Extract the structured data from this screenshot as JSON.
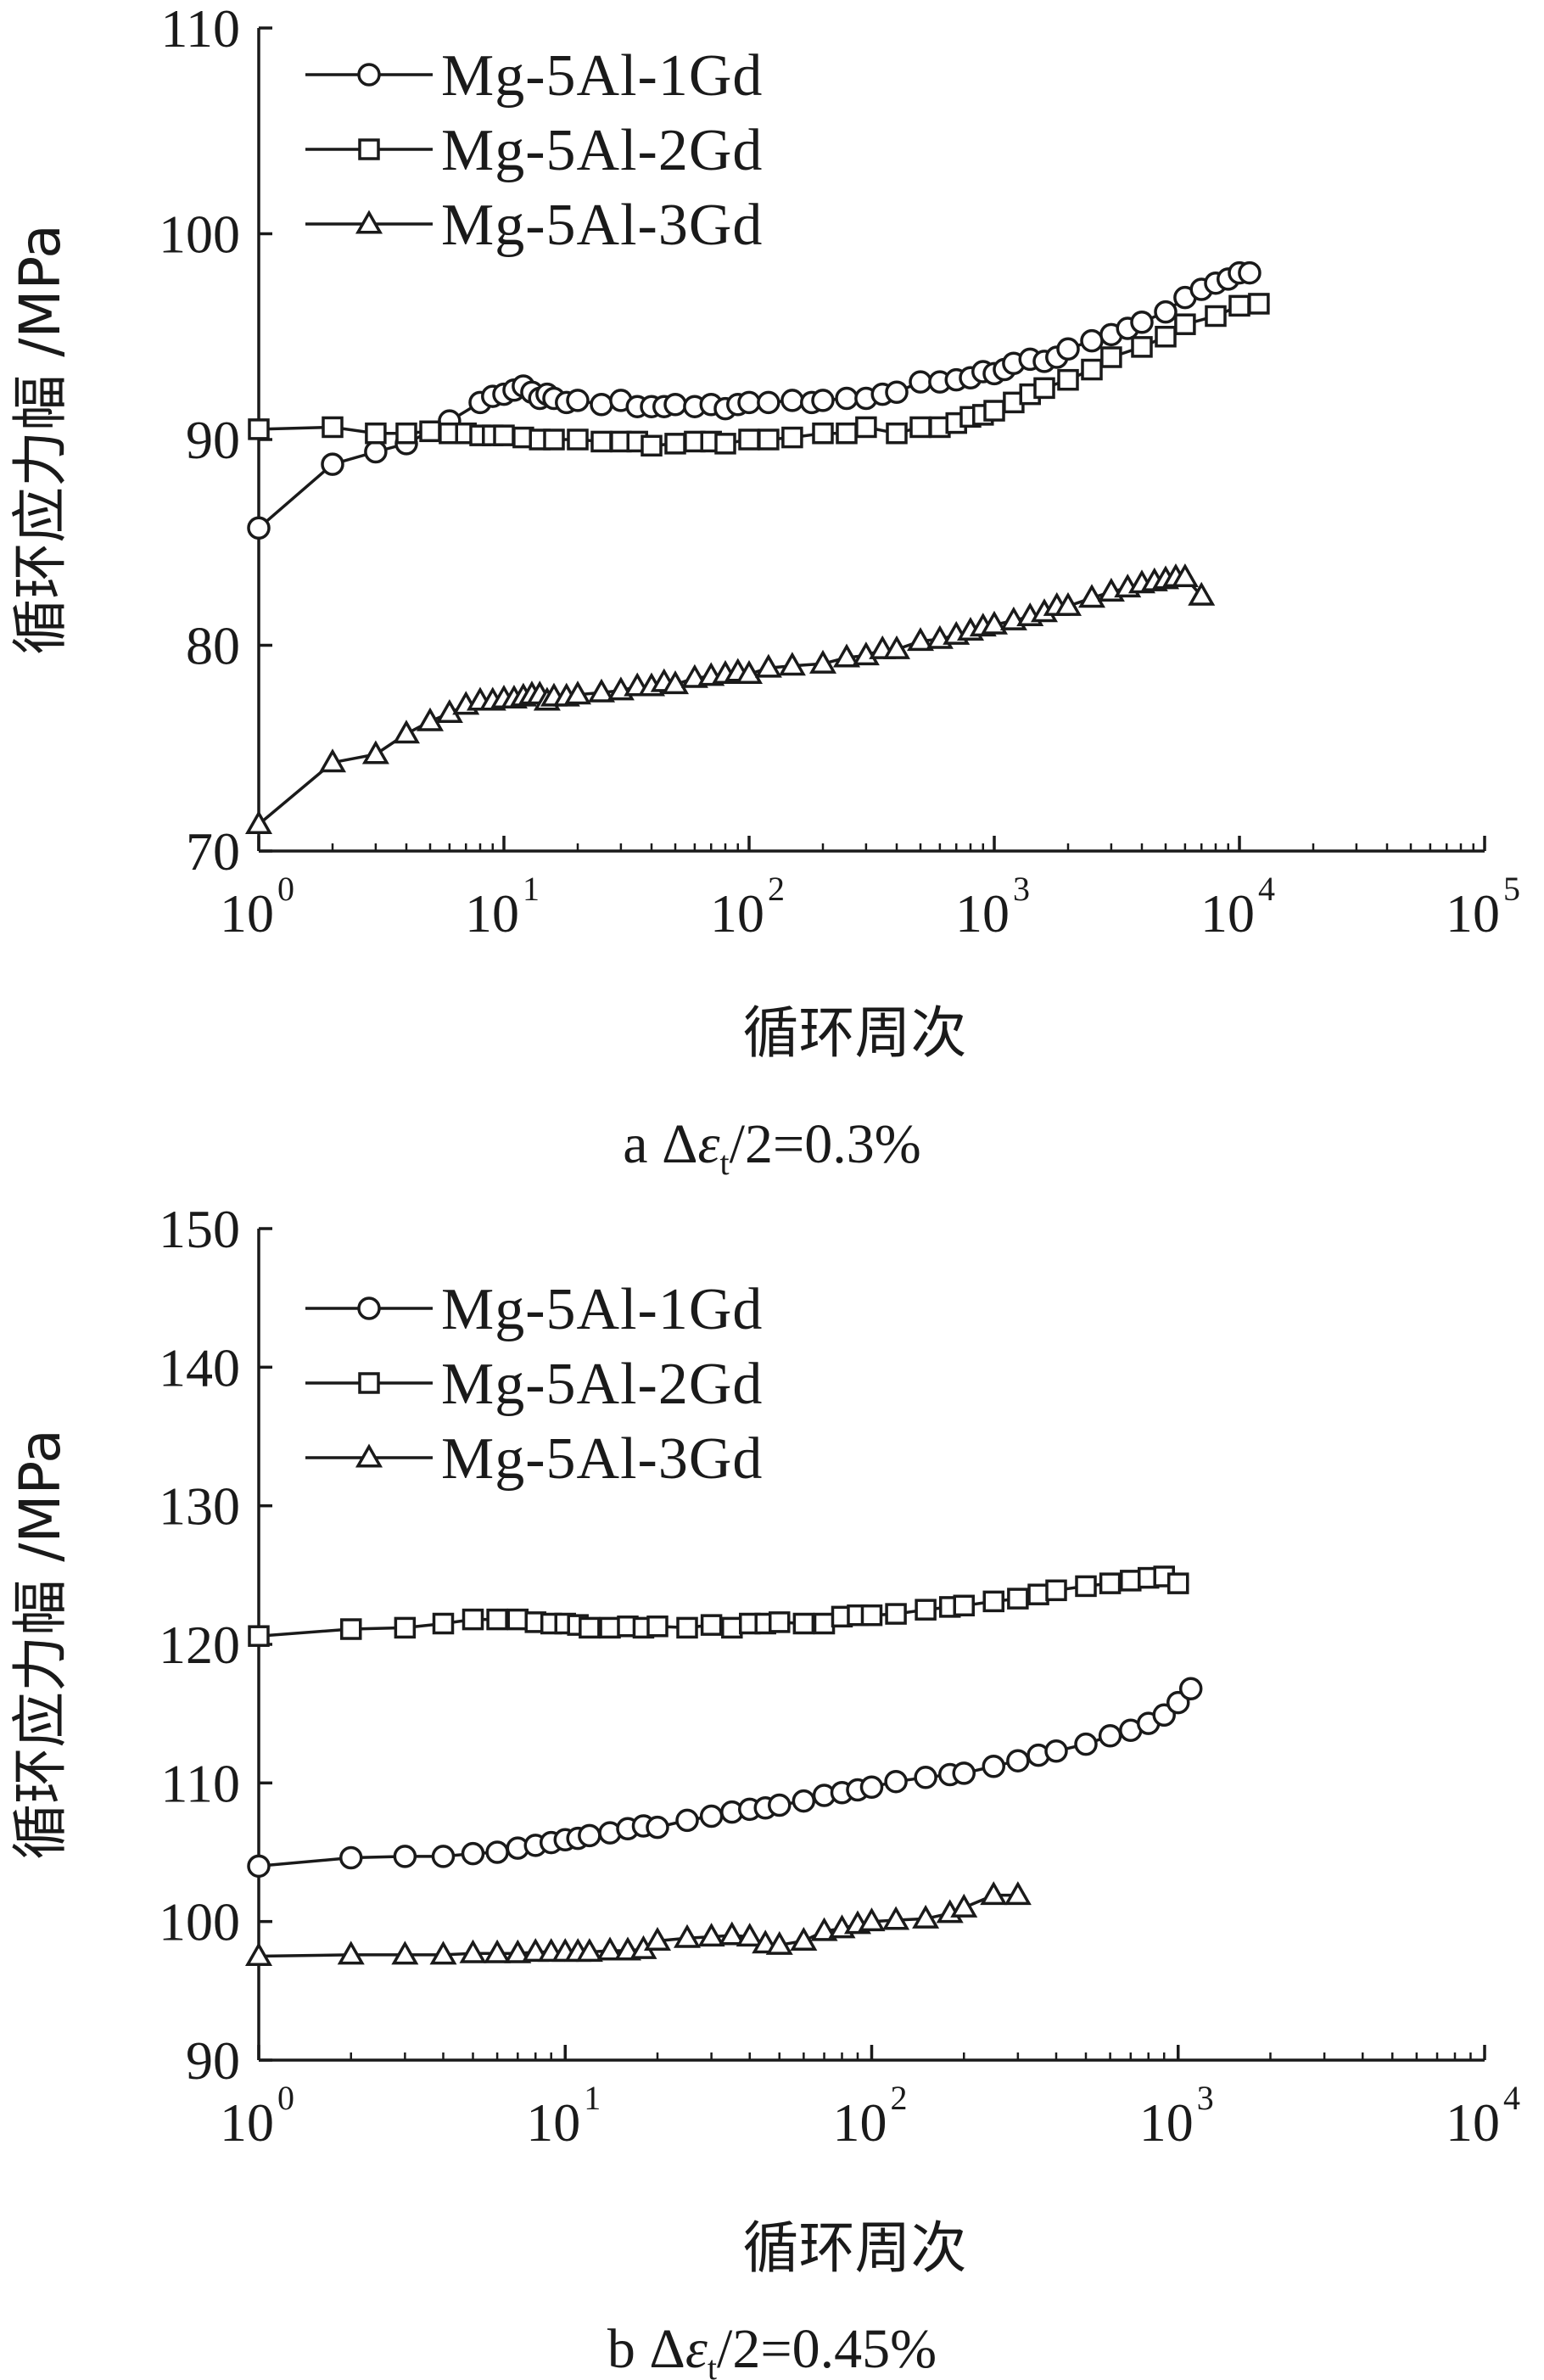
{
  "chart_data": [
    {
      "type": "line",
      "caption": {
        "prefix": "a",
        "delta": "Δ",
        "epsilon": "ε",
        "sub": "t",
        "suffix": "/2=0.3%"
      },
      "xlabel": "循环周次",
      "ylabel": "循环应力幅 /MPa",
      "xscale": "log",
      "xlim": [
        1,
        100000
      ],
      "ylim": [
        70,
        110
      ],
      "yticks": [
        "70",
        "80",
        "90",
        "100",
        "110"
      ],
      "xticks": [
        {
          "base": "10",
          "exp": "0"
        },
        {
          "base": "10",
          "exp": "1"
        },
        {
          "base": "10",
          "exp": "2"
        },
        {
          "base": "10",
          "exp": "3"
        },
        {
          "base": "10",
          "exp": "4"
        },
        {
          "base": "10",
          "exp": "5"
        }
      ],
      "legend_position": "top-left",
      "series": [
        {
          "name": "Mg-5Al-1Gd",
          "marker": "circle",
          "x": [
            1,
            2,
            3,
            4,
            6,
            8,
            9,
            10,
            11,
            12,
            13,
            14,
            15,
            16,
            18,
            20,
            25,
            30,
            35,
            40,
            45,
            50,
            60,
            70,
            80,
            90,
            100,
            120,
            150,
            180,
            200,
            250,
            300,
            350,
            400,
            500,
            600,
            700,
            800,
            900,
            1000,
            1100,
            1200,
            1400,
            1600,
            1800,
            2000,
            2500,
            3000,
            3500,
            4000,
            5000,
            6000,
            7000,
            8000,
            9000,
            10000,
            11000
          ],
          "y": [
            85.7,
            88.8,
            89.4,
            89.8,
            90.9,
            91.8,
            92.1,
            92.2,
            92.4,
            92.6,
            92.3,
            92.0,
            92.2,
            92.0,
            91.8,
            91.9,
            91.7,
            91.9,
            91.6,
            91.6,
            91.6,
            91.7,
            91.6,
            91.7,
            91.5,
            91.7,
            91.8,
            91.8,
            91.9,
            91.8,
            91.9,
            92.0,
            92.0,
            92.2,
            92.3,
            92.8,
            92.8,
            92.9,
            93.0,
            93.3,
            93.2,
            93.4,
            93.7,
            93.9,
            93.8,
            94.0,
            94.4,
            94.8,
            95.1,
            95.4,
            95.7,
            96.2,
            96.9,
            97.3,
            97.6,
            97.8,
            98.1,
            98.1
          ]
        },
        {
          "name": "Mg-5Al-2Gd",
          "marker": "square",
          "x": [
            1,
            2,
            3,
            4,
            5,
            6,
            7,
            8,
            9,
            10,
            12,
            14,
            16,
            20,
            25,
            30,
            35,
            40,
            50,
            60,
            70,
            80,
            100,
            120,
            150,
            200,
            250,
            300,
            400,
            500,
            600,
            700,
            800,
            900,
            1000,
            1200,
            1400,
            1600,
            2000,
            2500,
            3000,
            4000,
            5000,
            6000,
            8000,
            10000,
            12000
          ],
          "y": [
            90.5,
            90.6,
            90.3,
            90.3,
            90.4,
            90.3,
            90.3,
            90.2,
            90.2,
            90.2,
            90.1,
            90.0,
            90.0,
            90.0,
            89.9,
            89.9,
            89.9,
            89.7,
            89.8,
            89.9,
            89.9,
            89.8,
            90.0,
            90.0,
            90.1,
            90.3,
            90.3,
            90.6,
            90.3,
            90.6,
            90.6,
            90.8,
            91.1,
            91.2,
            91.4,
            91.8,
            92.2,
            92.5,
            92.9,
            93.4,
            94.0,
            94.5,
            95.0,
            95.6,
            96.0,
            96.5,
            96.6
          ]
        },
        {
          "name": "Mg-5Al-3Gd",
          "marker": "triangle",
          "x": [
            1,
            2,
            3,
            4,
            5,
            6,
            7,
            8,
            9,
            10,
            11,
            12,
            13,
            14,
            15,
            16,
            18,
            20,
            25,
            30,
            35,
            40,
            45,
            50,
            60,
            70,
            80,
            90,
            100,
            120,
            150,
            200,
            250,
            300,
            350,
            400,
            500,
            600,
            700,
            800,
            900,
            1000,
            1200,
            1400,
            1600,
            1800,
            2000,
            2500,
            3000,
            3500,
            4000,
            4500,
            5000,
            5500,
            6000,
            7000
          ],
          "y": [
            71.3,
            74.3,
            74.7,
            75.7,
            76.3,
            76.7,
            77.1,
            77.3,
            77.3,
            77.4,
            77.4,
            77.5,
            77.6,
            77.6,
            77.3,
            77.5,
            77.5,
            77.6,
            77.7,
            77.8,
            78.0,
            78.0,
            78.2,
            78.1,
            78.4,
            78.5,
            78.6,
            78.7,
            78.6,
            78.9,
            79.0,
            79.1,
            79.4,
            79.5,
            79.8,
            79.8,
            80.2,
            80.3,
            80.5,
            80.7,
            80.9,
            81.0,
            81.2,
            81.4,
            81.6,
            81.9,
            81.9,
            82.3,
            82.6,
            82.8,
            83.0,
            83.1,
            83.2,
            83.3,
            83.3,
            82.4
          ]
        }
      ]
    },
    {
      "type": "line",
      "caption": {
        "prefix": "b",
        "delta": "Δ",
        "epsilon": "ε",
        "sub": "t",
        "suffix": "/2=0.45%"
      },
      "xlabel": "循环周次",
      "ylabel": "循环应力幅 /MPa",
      "xscale": "log",
      "xlim": [
        1,
        10000
      ],
      "ylim": [
        90,
        150
      ],
      "yticks": [
        "90",
        "100",
        "110",
        "120",
        "130",
        "140",
        "150"
      ],
      "xticks": [
        {
          "base": "10",
          "exp": "0"
        },
        {
          "base": "10",
          "exp": "1"
        },
        {
          "base": "10",
          "exp": "2"
        },
        {
          "base": "10",
          "exp": "3"
        },
        {
          "base": "10",
          "exp": "4"
        }
      ],
      "legend_position": "top-left",
      "series": [
        {
          "name": "Mg-5Al-1Gd",
          "marker": "circle",
          "x": [
            1,
            2,
            3,
            4,
            5,
            6,
            7,
            8,
            9,
            10,
            11,
            12,
            14,
            16,
            18,
            20,
            25,
            30,
            35,
            40,
            45,
            50,
            60,
            70,
            80,
            90,
            100,
            120,
            150,
            180,
            200,
            250,
            300,
            350,
            400,
            500,
            600,
            700,
            800,
            900,
            1000,
            1100
          ],
          "y": [
            104.0,
            104.6,
            104.7,
            104.7,
            104.9,
            105.0,
            105.3,
            105.5,
            105.7,
            105.9,
            106.0,
            106.2,
            106.4,
            106.7,
            106.9,
            106.8,
            107.3,
            107.6,
            107.9,
            108.1,
            108.2,
            108.4,
            108.7,
            109.1,
            109.3,
            109.5,
            109.7,
            110.1,
            110.4,
            110.6,
            110.7,
            111.2,
            111.6,
            112.0,
            112.3,
            112.8,
            113.4,
            113.8,
            114.3,
            114.9,
            115.8,
            116.8
          ]
        },
        {
          "name": "Mg-5Al-2Gd",
          "marker": "square",
          "x": [
            1,
            2,
            3,
            4,
            5,
            6,
            7,
            8,
            9,
            10,
            11,
            12,
            14,
            16,
            18,
            20,
            25,
            30,
            35,
            40,
            45,
            50,
            60,
            70,
            80,
            90,
            100,
            120,
            150,
            180,
            200,
            250,
            300,
            350,
            400,
            500,
            600,
            700,
            800,
            900,
            1000
          ],
          "y": [
            120.6,
            121.1,
            121.2,
            121.5,
            121.8,
            121.8,
            121.8,
            121.6,
            121.5,
            121.5,
            121.4,
            121.2,
            121.2,
            121.3,
            121.2,
            121.3,
            121.2,
            121.4,
            121.2,
            121.5,
            121.5,
            121.6,
            121.5,
            121.5,
            122.0,
            122.1,
            122.1,
            122.2,
            122.5,
            122.7,
            122.8,
            123.1,
            123.3,
            123.6,
            123.9,
            124.2,
            124.4,
            124.6,
            124.8,
            124.9,
            124.4
          ]
        },
        {
          "name": "Mg-5Al-3Gd",
          "marker": "triangle",
          "x": [
            1,
            2,
            3,
            4,
            5,
            6,
            7,
            8,
            9,
            10,
            11,
            12,
            14,
            16,
            18,
            20,
            25,
            30,
            35,
            40,
            45,
            50,
            60,
            70,
            80,
            90,
            100,
            120,
            150,
            180,
            200,
            250,
            300
          ],
          "y": [
            97.5,
            97.6,
            97.6,
            97.6,
            97.7,
            97.7,
            97.7,
            97.8,
            97.8,
            97.8,
            97.8,
            97.8,
            97.9,
            97.9,
            98.0,
            98.6,
            98.8,
            98.9,
            99.0,
            98.9,
            98.4,
            98.3,
            98.6,
            99.3,
            99.5,
            99.8,
            100.0,
            100.1,
            100.2,
            100.6,
            101.0,
            101.9,
            101.9
          ]
        }
      ]
    }
  ]
}
